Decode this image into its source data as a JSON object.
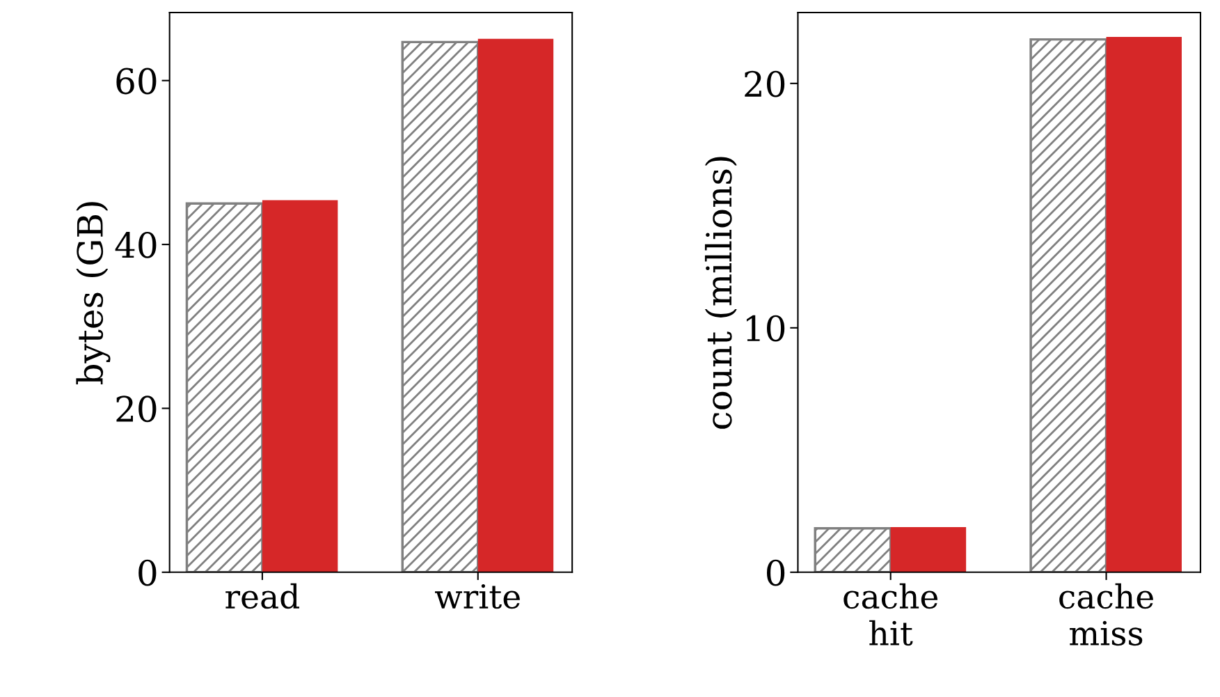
{
  "chart_data": [
    {
      "type": "bar",
      "ylabel": "bytes (GB)",
      "categories": [
        "read",
        "write"
      ],
      "ylim": [
        0,
        68.3
      ],
      "yticks": [
        0,
        20,
        40,
        60
      ],
      "grid": false,
      "legend": false,
      "series": [
        {
          "color": "#808080",
          "values": [
            45.0,
            64.7
          ]
        },
        {
          "color": "#d62728",
          "values": [
            45.4,
            65.1
          ]
        }
      ]
    },
    {
      "type": "bar",
      "ylabel": "count (millions)",
      "categories": [
        "cache\nhit",
        "cache\nmiss"
      ],
      "ylim": [
        0,
        22.9
      ],
      "yticks": [
        0,
        10,
        20
      ],
      "grid": false,
      "legend": false,
      "series": [
        {
          "color": "#808080",
          "values": [
            1.8,
            21.8
          ]
        },
        {
          "color": "#d62728",
          "values": [
            1.85,
            21.9
          ]
        }
      ]
    }
  ]
}
